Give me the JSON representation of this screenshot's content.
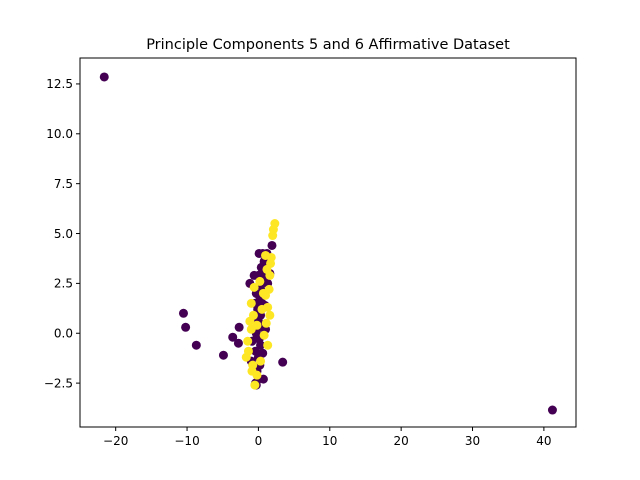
{
  "chart_data": {
    "type": "scatter",
    "title": "Principle Components 5 and 6 Affirmative Dataset",
    "xlabel": "",
    "ylabel": "",
    "xlim": [
      -25,
      44.5
    ],
    "ylim": [
      -4.7,
      13.8
    ],
    "grid": false,
    "legend": "none",
    "x_ticks": [
      -20,
      -10,
      0,
      10,
      20,
      30,
      40
    ],
    "x_tick_labels": [
      "−20",
      "−10",
      "0",
      "10",
      "20",
      "30",
      "40"
    ],
    "y_ticks": [
      -2.5,
      0.0,
      2.5,
      5.0,
      7.5,
      10.0,
      12.5
    ],
    "y_tick_labels": [
      "−2.5",
      "0.0",
      "2.5",
      "5.0",
      "7.5",
      "10.0",
      "12.5"
    ],
    "colors": {
      "class_0": "#440154",
      "class_1": "#fde725"
    },
    "series": [
      {
        "class": 0,
        "points": [
          [
            -21.6,
            12.85
          ],
          [
            -10.5,
            1.0
          ],
          [
            -10.2,
            0.3
          ],
          [
            -8.7,
            -0.6
          ],
          [
            -4.9,
            -1.1
          ],
          [
            -3.6,
            -0.2
          ],
          [
            -2.8,
            -0.5
          ],
          [
            -2.7,
            0.3
          ],
          [
            -1.2,
            2.5
          ],
          [
            3.4,
            -1.45
          ],
          [
            41.2,
            -3.85
          ],
          [
            -0.3,
            -2.6
          ],
          [
            0.0,
            -2.3
          ],
          [
            -0.2,
            -1.9
          ],
          [
            0.2,
            -1.6
          ],
          [
            0.0,
            -1.2
          ],
          [
            -0.4,
            -0.9
          ],
          [
            0.3,
            -0.6
          ],
          [
            0.1,
            -0.3
          ],
          [
            -0.3,
            0.0
          ],
          [
            0.4,
            0.3
          ],
          [
            0.0,
            0.6
          ],
          [
            0.3,
            0.9
          ],
          [
            -0.1,
            1.2
          ],
          [
            0.5,
            1.5
          ],
          [
            0.2,
            1.8
          ],
          [
            0.6,
            2.1
          ],
          [
            0.3,
            2.4
          ],
          [
            0.9,
            2.7
          ],
          [
            0.5,
            3.0
          ],
          [
            1.1,
            3.3
          ],
          [
            0.8,
            3.6
          ],
          [
            1.4,
            3.8
          ],
          [
            1.2,
            4.0
          ],
          [
            1.9,
            4.4
          ],
          [
            -0.5,
            1.5
          ],
          [
            -0.6,
            2.9
          ],
          [
            0.1,
            4.0
          ],
          [
            0.6,
            4.0
          ],
          [
            1.6,
            3.0
          ],
          [
            1.3,
            2.5
          ],
          [
            0.9,
            1.4
          ],
          [
            1.0,
            0.2
          ],
          [
            -0.9,
            -0.4
          ],
          [
            -1.0,
            -1.4
          ],
          [
            0.7,
            -2.3
          ],
          [
            -0.4,
            -2.5
          ],
          [
            0.0,
            2.9
          ],
          [
            0.4,
            3.3
          ],
          [
            -0.2,
            -0.2
          ],
          [
            0.6,
            -1.0
          ],
          [
            0.2,
            1.1
          ],
          [
            -0.3,
            2.0
          ]
        ]
      },
      {
        "class": 1,
        "points": [
          [
            2.3,
            5.5
          ],
          [
            2.1,
            5.2
          ],
          [
            2.0,
            4.9
          ],
          [
            1.8,
            3.8
          ],
          [
            1.7,
            3.5
          ],
          [
            1.6,
            2.9
          ],
          [
            1.2,
            3.2
          ],
          [
            1.5,
            2.2
          ],
          [
            1.3,
            1.3
          ],
          [
            1.6,
            0.9
          ],
          [
            1.0,
            1.9
          ],
          [
            -1.0,
            1.5
          ],
          [
            -1.2,
            0.6
          ],
          [
            -1.0,
            0.2
          ],
          [
            -1.5,
            -0.4
          ],
          [
            -1.4,
            -0.9
          ],
          [
            -1.7,
            -1.2
          ],
          [
            -0.9,
            -1.9
          ],
          [
            -0.5,
            -2.6
          ],
          [
            -0.2,
            -2.1
          ],
          [
            0.3,
            -1.4
          ],
          [
            1.3,
            -0.6
          ],
          [
            -0.7,
            0.9
          ],
          [
            0.8,
            -0.1
          ],
          [
            -0.6,
            2.3
          ],
          [
            1.0,
            3.9
          ],
          [
            0.2,
            2.6
          ],
          [
            0.5,
            1.2
          ],
          [
            -0.8,
            -1.6
          ],
          [
            1.1,
            0.5
          ],
          [
            -0.2,
            0.4
          ],
          [
            0.7,
            2.0
          ]
        ]
      }
    ]
  }
}
